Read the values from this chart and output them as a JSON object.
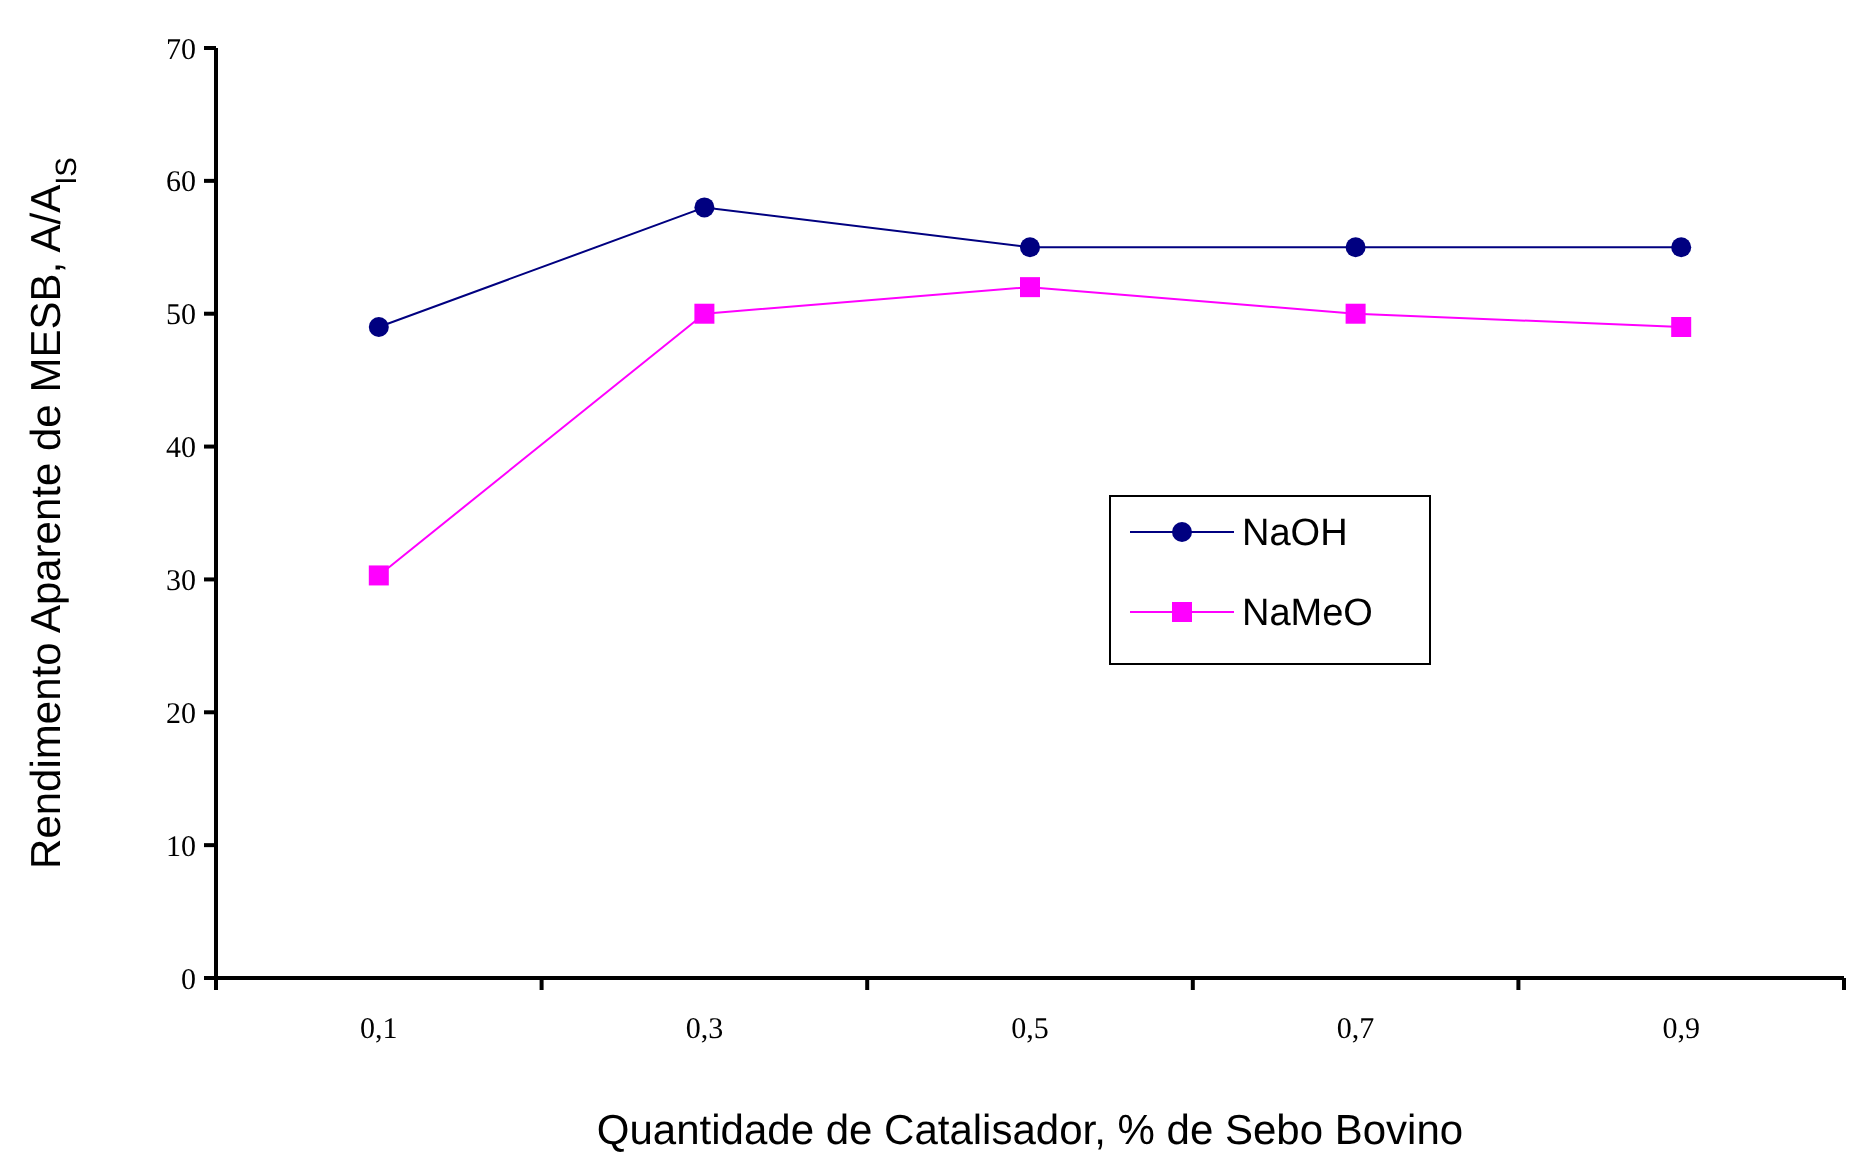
{
  "chart_data": {
    "type": "line",
    "xlabel": "Quantidade de Catalisador, % de Sebo Bovino",
    "ylabel": "Rendimento Aparente de MESB, A/A$_{IS}$",
    "categories": [
      "0,1",
      "0,3",
      "0,5",
      "0,7",
      "0,9"
    ],
    "series": [
      {
        "name": "NaOH",
        "color": "#000080",
        "marker": "circle",
        "values": [
          49,
          58,
          55,
          55,
          55
        ]
      },
      {
        "name": "NaMeO",
        "color": "#ff00ff",
        "marker": "square",
        "values": [
          30.3,
          50,
          52,
          50,
          49
        ]
      }
    ],
    "ylim": [
      0,
      70
    ],
    "yticks": [
      0,
      10,
      20,
      30,
      40,
      50,
      60,
      70
    ],
    "grid": false,
    "legend": "right"
  }
}
